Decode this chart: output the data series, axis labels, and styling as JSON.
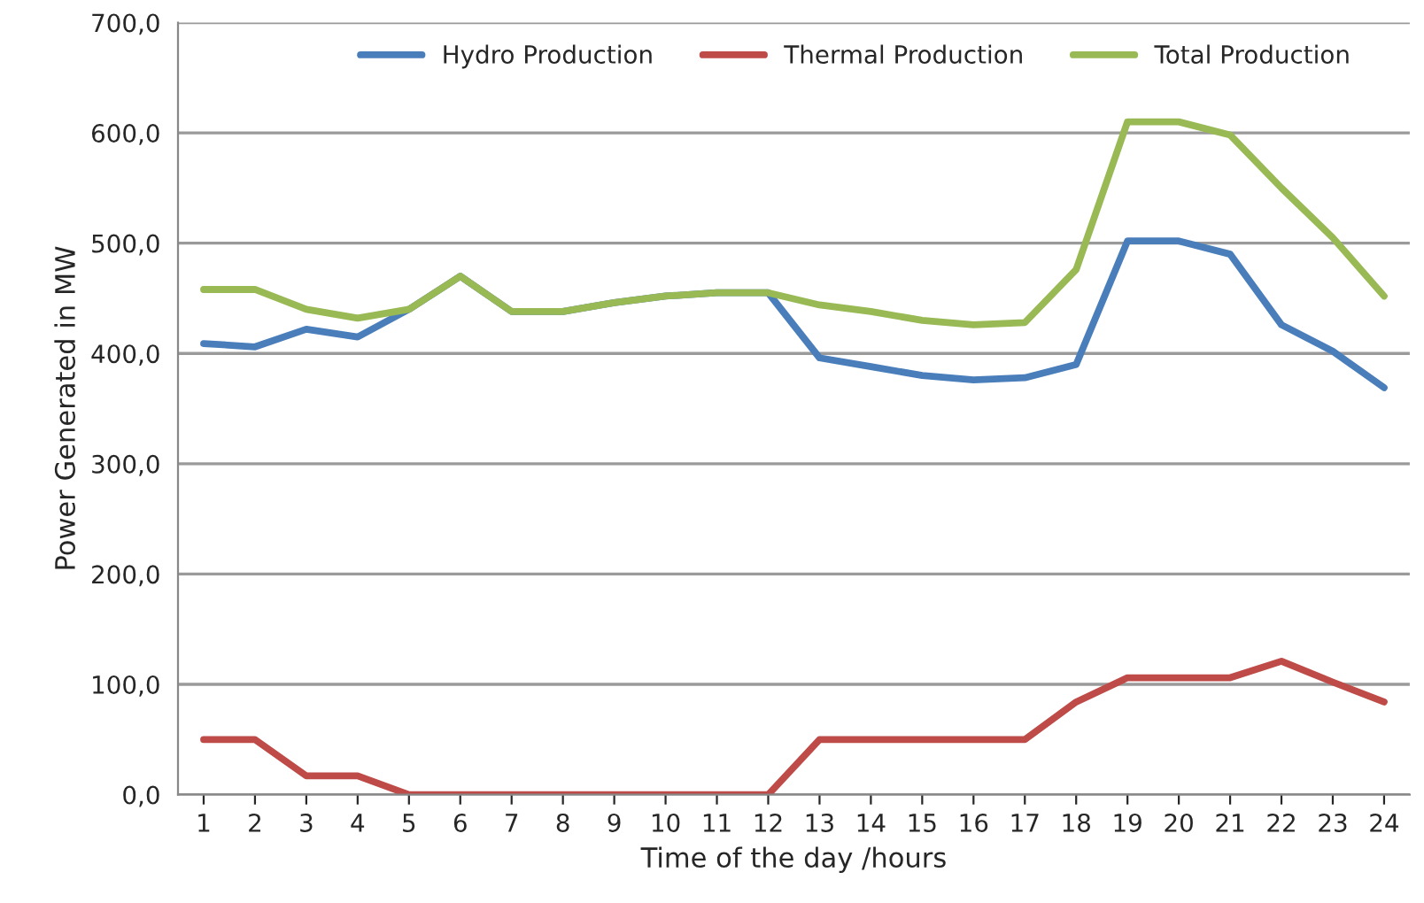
{
  "chart_data": {
    "type": "line",
    "xlabel": "Time of the day /hours",
    "ylabel": "Power Generated in MW",
    "categories": [
      "1",
      "2",
      "3",
      "4",
      "5",
      "6",
      "7",
      "8",
      "9",
      "10",
      "11",
      "12",
      "13",
      "14",
      "15",
      "16",
      "17",
      "18",
      "19",
      "20",
      "21",
      "22",
      "23",
      "24"
    ],
    "series": [
      {
        "name": "Hydro Production",
        "color": "#4a7ebb",
        "values": [
          409,
          406,
          422,
          415,
          440,
          470,
          438,
          438,
          446,
          452,
          455,
          455,
          396,
          388,
          380,
          376,
          378,
          390,
          502,
          502,
          490,
          426,
          402,
          369
        ]
      },
      {
        "name": "Thermal Production",
        "color": "#be4b48",
        "values": [
          50,
          50,
          17,
          17,
          0,
          0,
          0,
          0,
          0,
          0,
          0,
          0,
          50,
          50,
          50,
          50,
          50,
          84,
          106,
          106,
          106,
          121,
          102,
          84
        ]
      },
      {
        "name": "Total Production",
        "color": "#98b954",
        "values": [
          458,
          458,
          440,
          432,
          440,
          470,
          438,
          438,
          446,
          452,
          455,
          455,
          444,
          438,
          430,
          426,
          428,
          476,
          610,
          610,
          598,
          550,
          505,
          452
        ]
      }
    ],
    "ylim": [
      0,
      700
    ],
    "yticks": [
      {
        "value": 0,
        "label": "0,0"
      },
      {
        "value": 100,
        "label": "100,0"
      },
      {
        "value": 200,
        "label": "200,0"
      },
      {
        "value": 300,
        "label": "300,0"
      },
      {
        "value": 400,
        "label": "400,0"
      },
      {
        "value": 500,
        "label": "500,0"
      },
      {
        "value": 600,
        "label": "600,0"
      },
      {
        "value": 700,
        "label": "700,0"
      }
    ],
    "grid": "y",
    "legend": "top",
    "marker": "none",
    "line_style": "solid"
  }
}
